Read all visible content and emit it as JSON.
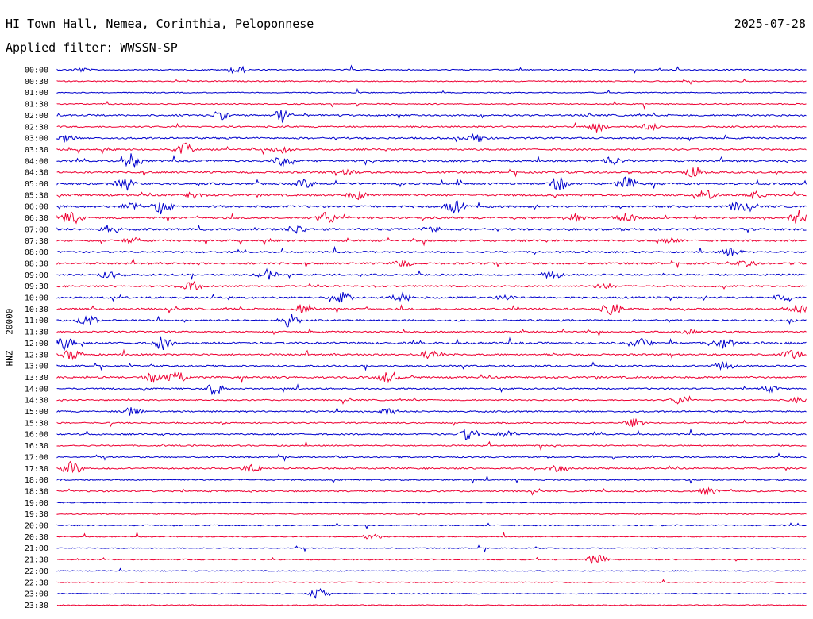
{
  "header": {
    "station": "HI Town Hall, Nemea, Corinthia, Peloponnese",
    "date": "2025-07-28",
    "filter": "Applied filter: WWSSN-SP",
    "channel": "HNZ - 20000"
  },
  "colors": {
    "even_hour": "#0000cc",
    "half_hour": "#ee0033",
    "text": "#000000"
  },
  "chart_data": {
    "type": "line",
    "title": "HI Town Hall, Nemea, Corinthia, Peloponnese",
    "ylabel": "HNZ - 20000",
    "row_labels": [
      "00:00",
      "00:30",
      "01:00",
      "01:30",
      "02:00",
      "02:30",
      "03:00",
      "03:30",
      "04:00",
      "04:30",
      "05:00",
      "05:30",
      "06:00",
      "06:30",
      "07:00",
      "07:30",
      "08:00",
      "08:30",
      "09:00",
      "09:30",
      "10:00",
      "10:30",
      "11:00",
      "11:30",
      "12:00",
      "12:30",
      "13:00",
      "13:30",
      "14:00",
      "14:30",
      "15:00",
      "15:30",
      "16:00",
      "16:30",
      "17:00",
      "17:30",
      "18:00",
      "18:30",
      "19:00",
      "19:30",
      "20:00",
      "20:30",
      "21:00",
      "21:30",
      "22:00",
      "22:30",
      "23:00",
      "23:30"
    ],
    "row_activity": [
      0.3,
      0.3,
      0.2,
      0.3,
      0.6,
      0.5,
      0.6,
      0.6,
      0.7,
      0.7,
      0.8,
      0.8,
      0.8,
      0.8,
      0.8,
      0.7,
      0.6,
      0.7,
      0.6,
      0.6,
      0.7,
      0.7,
      0.6,
      0.5,
      0.8,
      0.6,
      0.5,
      0.7,
      0.5,
      0.4,
      0.5,
      0.4,
      0.5,
      0.4,
      0.4,
      0.5,
      0.4,
      0.5,
      0.2,
      0.3,
      0.3,
      0.2,
      0.2,
      0.3,
      0.2,
      0.2,
      0.2,
      0.2
    ],
    "events": [
      [
        [
          0.24,
          0.6
        ],
        [
          0.03,
          0.3
        ]
      ],
      [],
      [],
      [],
      [
        [
          0.22,
          0.5
        ],
        [
          0.3,
          0.9
        ]
      ],
      [
        [
          0.72,
          0.9
        ],
        [
          0.79,
          0.5
        ]
      ],
      [
        [
          0.01,
          0.5
        ],
        [
          0.56,
          0.6
        ]
      ],
      [
        [
          0.17,
          0.9
        ],
        [
          0.3,
          0.6
        ]
      ],
      [
        [
          0.1,
          1.0
        ],
        [
          0.3,
          0.6
        ],
        [
          0.74,
          0.7
        ]
      ],
      [
        [
          0.39,
          0.4
        ],
        [
          0.85,
          0.7
        ]
      ],
      [
        [
          0.09,
          0.7
        ],
        [
          0.33,
          0.6
        ],
        [
          0.67,
          0.9
        ],
        [
          0.76,
          0.9
        ]
      ],
      [
        [
          0.18,
          0.4
        ],
        [
          0.4,
          0.6
        ],
        [
          0.87,
          0.5
        ],
        [
          0.93,
          0.5
        ]
      ],
      [
        [
          0.1,
          0.6
        ],
        [
          0.14,
          0.9
        ],
        [
          0.53,
          0.9
        ],
        [
          0.91,
          0.8
        ]
      ],
      [
        [
          0.02,
          1.0
        ],
        [
          0.36,
          0.9
        ],
        [
          0.69,
          0.5
        ],
        [
          0.76,
          0.6
        ],
        [
          0.99,
          1.0
        ]
      ],
      [
        [
          0.07,
          0.6
        ],
        [
          0.32,
          0.6
        ],
        [
          0.5,
          0.4
        ]
      ],
      [
        [
          0.1,
          0.4
        ],
        [
          0.82,
          0.3
        ]
      ],
      [
        [
          0.9,
          0.6
        ]
      ],
      [
        [
          0.46,
          0.5
        ],
        [
          0.92,
          0.4
        ]
      ],
      [
        [
          0.07,
          0.5
        ],
        [
          0.28,
          0.7
        ],
        [
          0.66,
          0.6
        ]
      ],
      [
        [
          0.18,
          0.6
        ],
        [
          0.73,
          0.4
        ]
      ],
      [
        [
          0.38,
          0.8
        ],
        [
          0.46,
          0.6
        ],
        [
          0.6,
          0.4
        ],
        [
          0.97,
          0.6
        ]
      ],
      [
        [
          0.33,
          0.8
        ],
        [
          0.74,
          0.9
        ],
        [
          0.99,
          0.6
        ]
      ],
      [
        [
          0.04,
          0.8
        ],
        [
          0.31,
          1.0
        ]
      ],
      [
        [
          0.84,
          0.3
        ]
      ],
      [
        [
          0.01,
          0.9
        ],
        [
          0.14,
          0.9
        ],
        [
          0.78,
          0.6
        ],
        [
          0.89,
          0.8
        ]
      ],
      [
        [
          0.02,
          0.8
        ],
        [
          0.5,
          0.7
        ],
        [
          0.98,
          0.7
        ]
      ],
      [
        [
          0.89,
          0.6
        ]
      ],
      [
        [
          0.13,
          0.7
        ],
        [
          0.16,
          1.0
        ],
        [
          0.44,
          0.7
        ]
      ],
      [
        [
          0.21,
          0.8
        ],
        [
          0.95,
          0.4
        ]
      ],
      [
        [
          0.83,
          0.6
        ],
        [
          0.99,
          0.4
        ]
      ],
      [
        [
          0.1,
          0.8
        ],
        [
          0.44,
          0.5
        ]
      ],
      [
        [
          0.77,
          0.6
        ]
      ],
      [
        [
          0.55,
          0.9
        ],
        [
          0.6,
          0.5
        ]
      ],
      [],
      [],
      [
        [
          0.02,
          1.0
        ],
        [
          0.26,
          0.6
        ],
        [
          0.67,
          0.5
        ]
      ],
      [],
      [
        [
          0.87,
          0.5
        ]
      ],
      [],
      [],
      [],
      [
        [
          0.42,
          0.4
        ]
      ],
      [],
      [
        [
          0.72,
          0.7
        ]
      ],
      [],
      [],
      [
        [
          0.35,
          0.9
        ]
      ],
      []
    ]
  }
}
